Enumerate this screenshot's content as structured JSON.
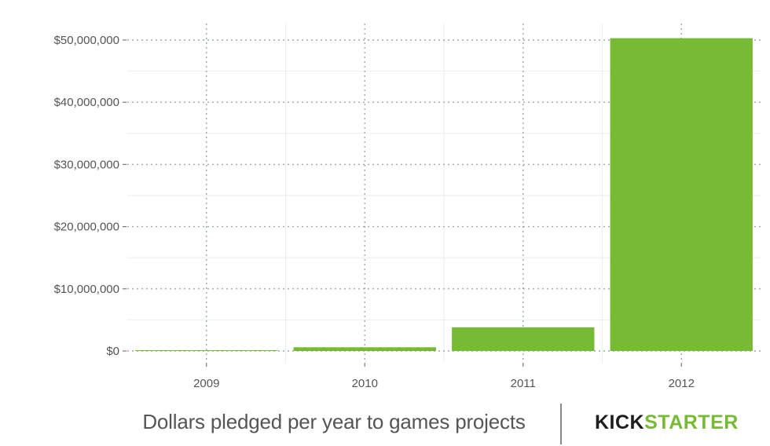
{
  "chart_data": {
    "type": "bar",
    "categories": [
      "2009",
      "2010",
      "2011",
      "2012"
    ],
    "values": [
      100000,
      600000,
      3800000,
      50300000
    ],
    "title": "",
    "xlabel": "",
    "ylabel": "",
    "ylim": [
      0,
      52500000
    ],
    "yticks": [
      0,
      10000000,
      20000000,
      30000000,
      40000000,
      50000000
    ],
    "ytick_labels": [
      "$0",
      "$10,000,000",
      "$20,000,000",
      "$30,000,000",
      "$40,000,000",
      "$50,000,000"
    ],
    "grid": true,
    "legend": "none",
    "bar_color": "#76bb33",
    "major_grid_color": "#9aabaa",
    "minor_grid_color": "#e9eeee"
  },
  "caption": "Dollars pledged per year to games projects",
  "logo": {
    "part_a": "KICK",
    "part_b": "STARTER"
  }
}
